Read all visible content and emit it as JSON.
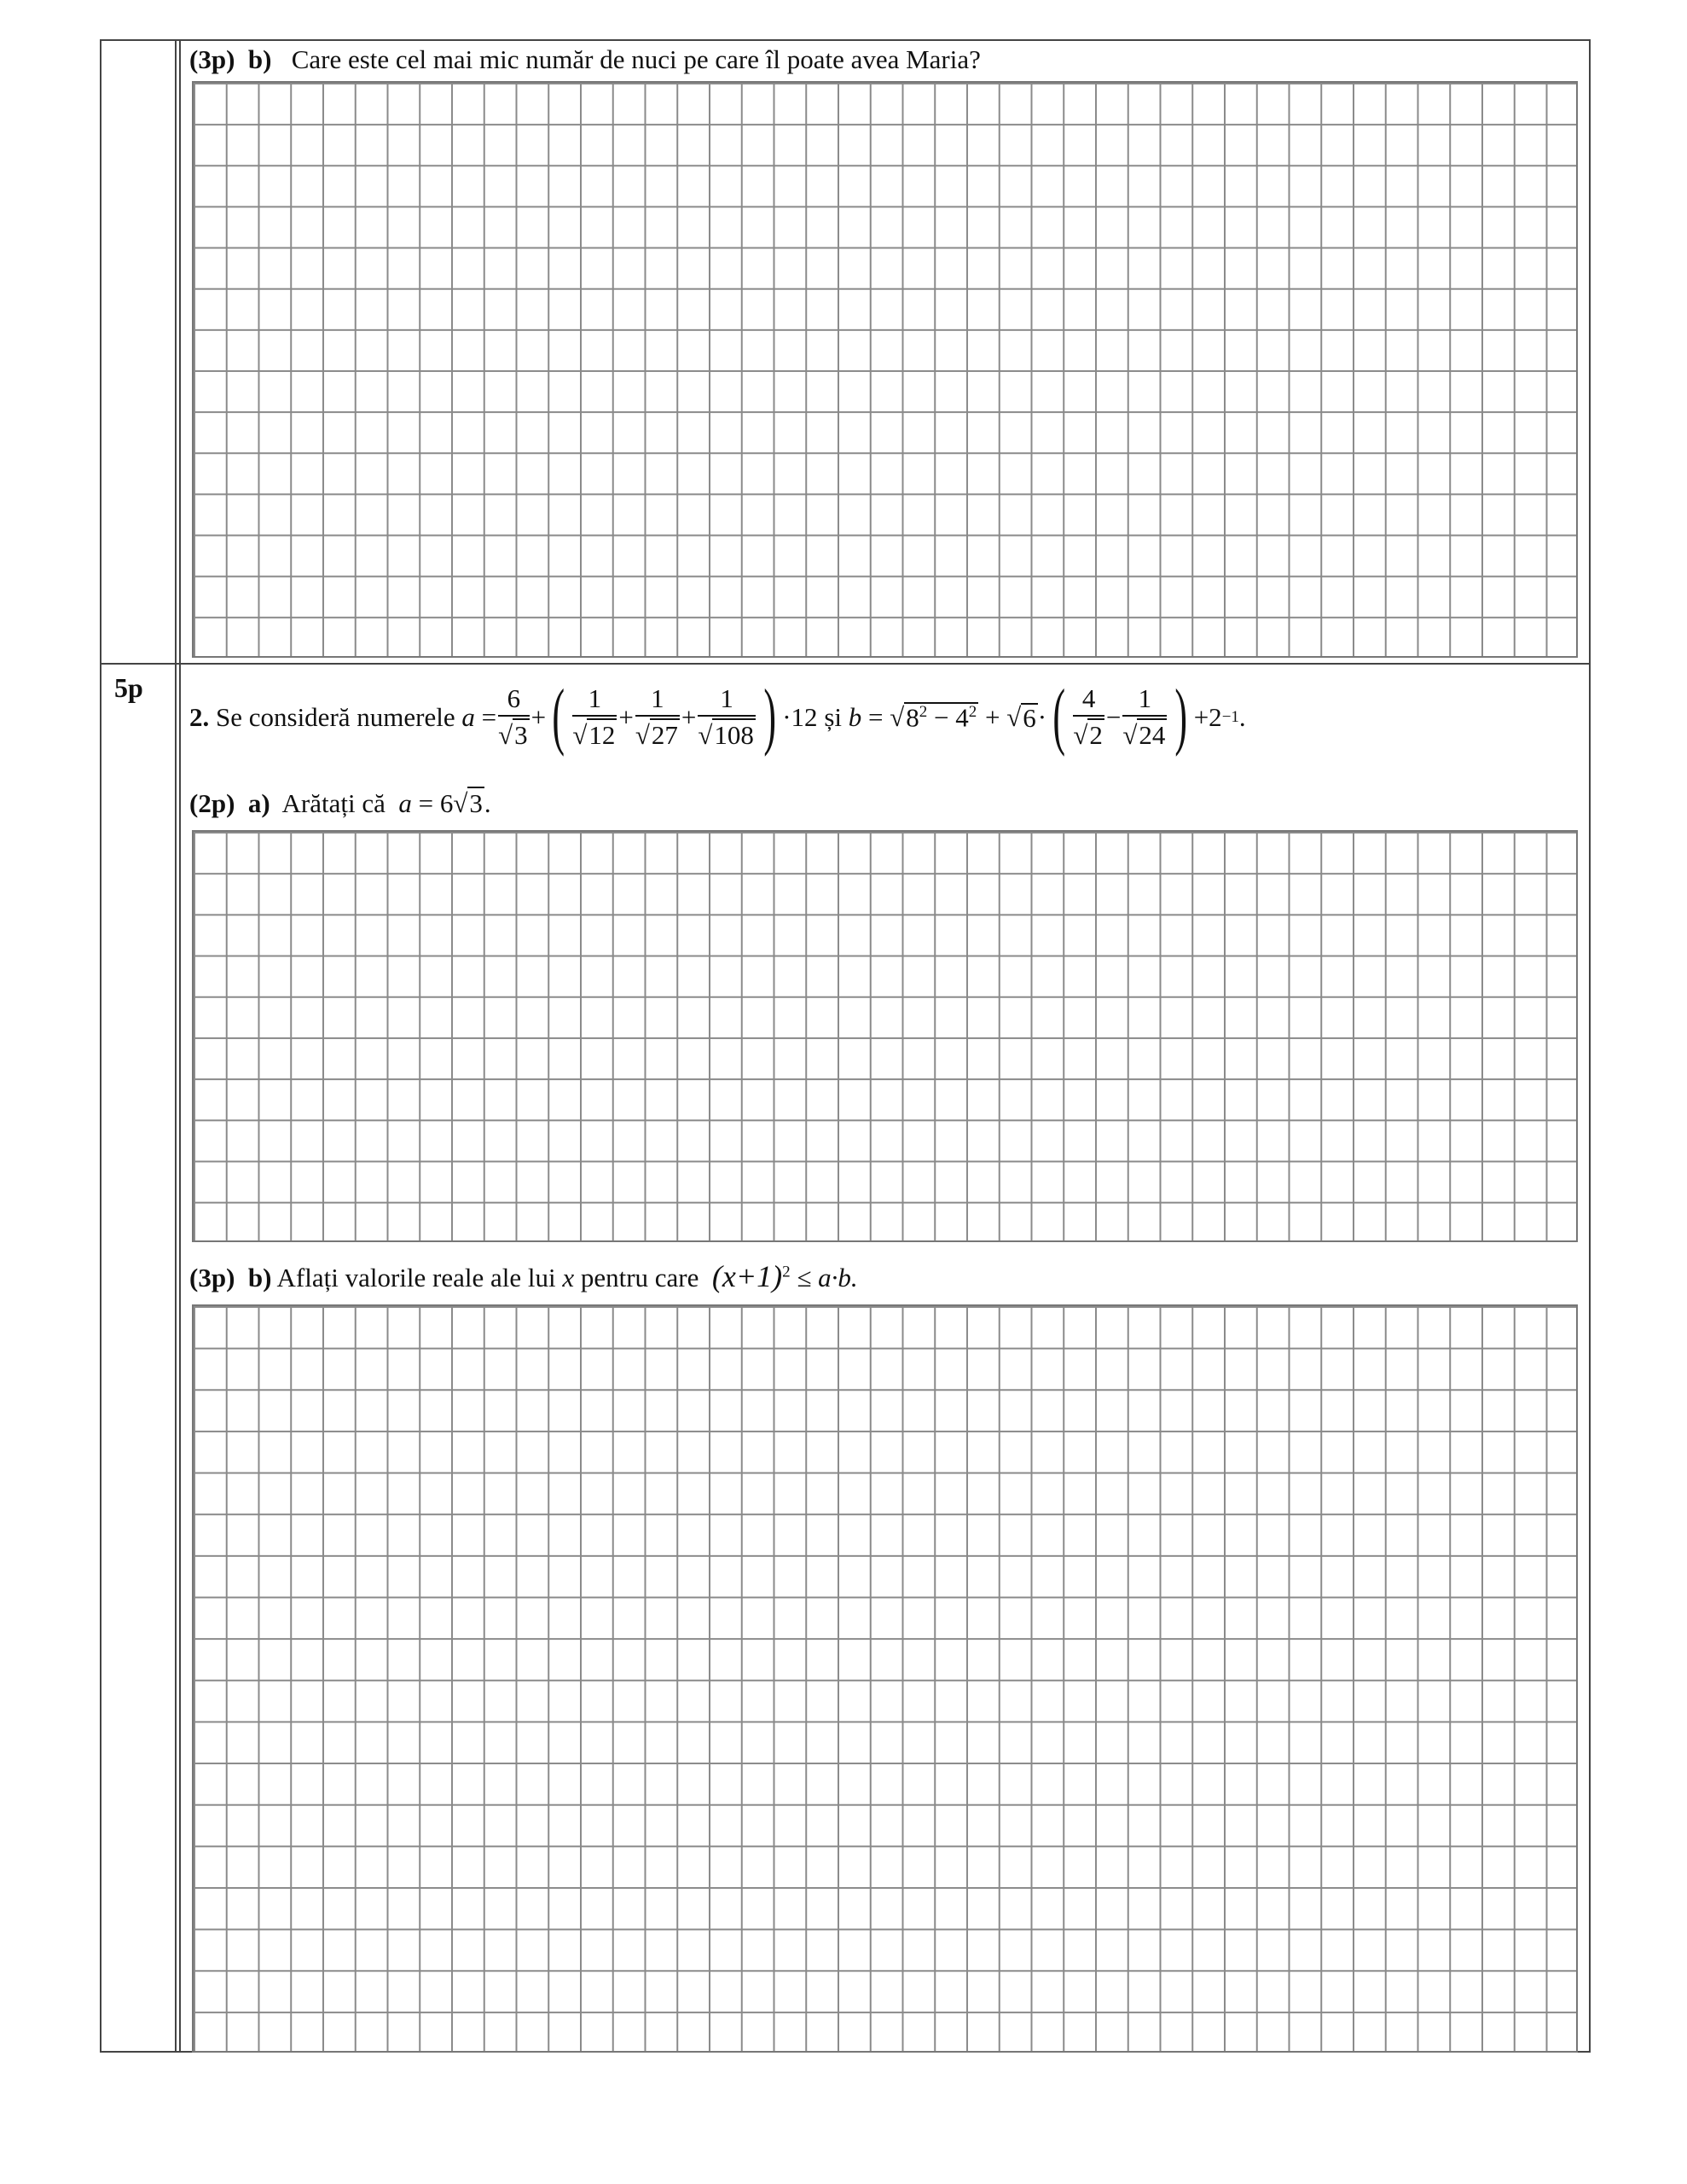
{
  "section1": {
    "points": "(3p)",
    "label": "b)",
    "question": "Care este cel mai mic număr de nuci pe care îl poate avea Maria?"
  },
  "section2": {
    "score": "5p",
    "number": "2.",
    "intro": "Se consideră numerele",
    "formula_a": {
      "var": "a",
      "eq": "=",
      "t1_num": "6",
      "t1_den": "3",
      "plus": "+",
      "t2_num": "1",
      "t2_den": "12",
      "t3_num": "1",
      "t3_den": "27",
      "t4_num": "1",
      "t4_den": "108",
      "mult": "·12"
    },
    "conj": "și",
    "formula_b": {
      "var": "b",
      "eq": "=",
      "root1": "8",
      "exp1": "2",
      "minus": "−",
      "root1b": "4",
      "exp2": "2",
      "plus": "+",
      "root2": "6",
      "dot": "·",
      "f1_num": "4",
      "f1_den": "2",
      "f2_num": "1",
      "f2_den": "24",
      "tail": "+2",
      "tail_exp": "−1",
      "end": "."
    },
    "part_a": {
      "points": "(2p)",
      "label": "a)",
      "text": "Arătați că",
      "expr_var": "a",
      "expr_eq": "= 6",
      "expr_root": "3",
      "expr_end": "."
    },
    "part_b": {
      "points": "(3p)",
      "label": "b)",
      "text": "Aflați valorile reale ale lui",
      "var": "x",
      "text2": "pentru care",
      "expr": "(x+1)",
      "exp": "2",
      "rel": "≤ a·b."
    }
  }
}
